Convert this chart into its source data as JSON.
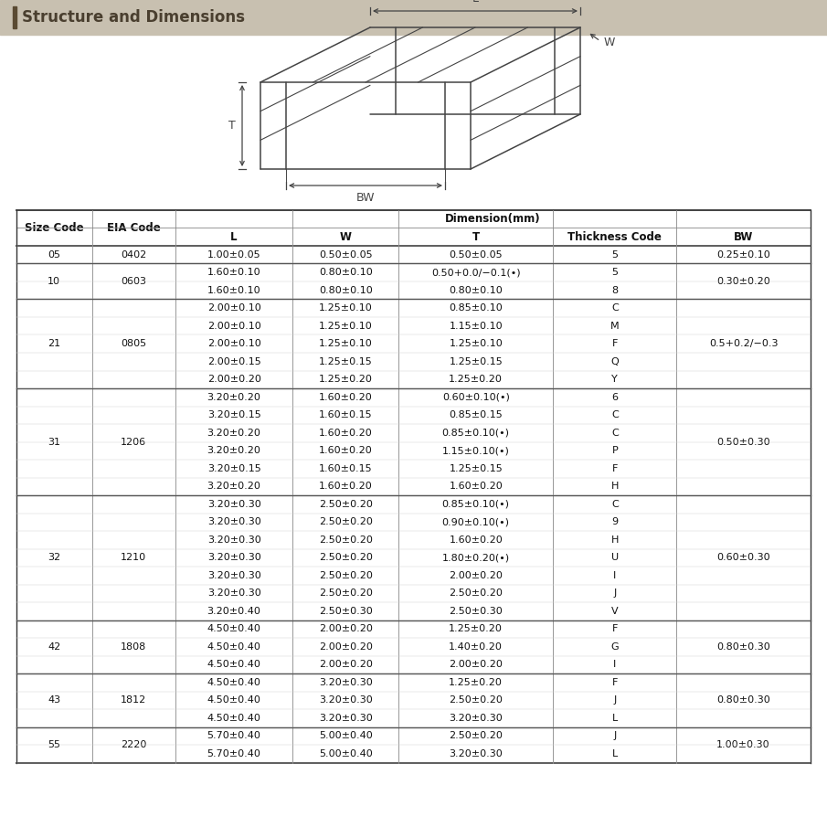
{
  "title": "Structure and Dimensions",
  "title_bar_color": "#c8c0b0",
  "title_text_color": "#4a3f2f",
  "bg_color": "#ffffff",
  "table_header": [
    "Size Code",
    "EIA Code",
    "L",
    "W",
    "T",
    "Thickness Code",
    "BW"
  ],
  "dimension_header": "Dimension(mm)",
  "rows": [
    {
      "size": "05",
      "eia": "0402",
      "L": "1.00±0.05",
      "W": "0.50±0.05",
      "T": "0.50±0.05",
      "thick": "5",
      "BW": "0.25±0.10",
      "size_span": 1,
      "bw_span": 1
    },
    {
      "size": "10",
      "eia": "0603",
      "L": "1.60±0.10",
      "W": "0.80±0.10",
      "T": "0.50+0.0/−0.1(•)",
      "thick": "5",
      "BW": "0.30±0.20",
      "size_span": 2,
      "bw_span": 2
    },
    {
      "size": "",
      "eia": "",
      "L": "1.60±0.10",
      "W": "0.80±0.10",
      "T": "0.80±0.10",
      "thick": "8",
      "BW": "",
      "size_span": 0,
      "bw_span": 0
    },
    {
      "size": "21",
      "eia": "0805",
      "L": "2.00±0.10",
      "W": "1.25±0.10",
      "T": "0.85±0.10",
      "thick": "C",
      "BW": "0.5+0.2/−0.3",
      "size_span": 5,
      "bw_span": 5
    },
    {
      "size": "",
      "eia": "",
      "L": "2.00±0.10",
      "W": "1.25±0.10",
      "T": "1.15±0.10",
      "thick": "M",
      "BW": "",
      "size_span": 0,
      "bw_span": 0
    },
    {
      "size": "",
      "eia": "",
      "L": "2.00±0.10",
      "W": "1.25±0.10",
      "T": "1.25±0.10",
      "thick": "F",
      "BW": "",
      "size_span": 0,
      "bw_span": 0
    },
    {
      "size": "",
      "eia": "",
      "L": "2.00±0.15",
      "W": "1.25±0.15",
      "T": "1.25±0.15",
      "thick": "Q",
      "BW": "",
      "size_span": 0,
      "bw_span": 0
    },
    {
      "size": "",
      "eia": "",
      "L": "2.00±0.20",
      "W": "1.25±0.20",
      "T": "1.25±0.20",
      "thick": "Y",
      "BW": "",
      "size_span": 0,
      "bw_span": 0
    },
    {
      "size": "31",
      "eia": "1206",
      "L": "3.20±0.20",
      "W": "1.60±0.20",
      "T": "0.60±0.10(•)",
      "thick": "6",
      "BW": "0.50±0.30",
      "size_span": 6,
      "bw_span": 6
    },
    {
      "size": "",
      "eia": "",
      "L": "3.20±0.15",
      "W": "1.60±0.15",
      "T": "0.85±0.15",
      "thick": "C",
      "BW": "",
      "size_span": 0,
      "bw_span": 0
    },
    {
      "size": "",
      "eia": "",
      "L": "3.20±0.20",
      "W": "1.60±0.20",
      "T": "0.85±0.10(•)",
      "thick": "C",
      "BW": "",
      "size_span": 0,
      "bw_span": 0
    },
    {
      "size": "",
      "eia": "",
      "L": "3.20±0.20",
      "W": "1.60±0.20",
      "T": "1.15±0.10(•)",
      "thick": "P",
      "BW": "",
      "size_span": 0,
      "bw_span": 0
    },
    {
      "size": "",
      "eia": "",
      "L": "3.20±0.15",
      "W": "1.60±0.15",
      "T": "1.25±0.15",
      "thick": "F",
      "BW": "",
      "size_span": 0,
      "bw_span": 0
    },
    {
      "size": "",
      "eia": "",
      "L": "3.20±0.20",
      "W": "1.60±0.20",
      "T": "1.60±0.20",
      "thick": "H",
      "BW": "",
      "size_span": 0,
      "bw_span": 0
    },
    {
      "size": "32",
      "eia": "1210",
      "L": "3.20±0.30",
      "W": "2.50±0.20",
      "T": "0.85±0.10(•)",
      "thick": "C",
      "BW": "0.60±0.30",
      "size_span": 7,
      "bw_span": 7
    },
    {
      "size": "",
      "eia": "",
      "L": "3.20±0.30",
      "W": "2.50±0.20",
      "T": "0.90±0.10(•)",
      "thick": "9",
      "BW": "",
      "size_span": 0,
      "bw_span": 0
    },
    {
      "size": "",
      "eia": "",
      "L": "3.20±0.30",
      "W": "2.50±0.20",
      "T": "1.60±0.20",
      "thick": "H",
      "BW": "",
      "size_span": 0,
      "bw_span": 0
    },
    {
      "size": "",
      "eia": "",
      "L": "3.20±0.30",
      "W": "2.50±0.20",
      "T": "1.80±0.20(•)",
      "thick": "U",
      "BW": "",
      "size_span": 0,
      "bw_span": 0
    },
    {
      "size": "",
      "eia": "",
      "L": "3.20±0.30",
      "W": "2.50±0.20",
      "T": "2.00±0.20",
      "thick": "I",
      "BW": "",
      "size_span": 0,
      "bw_span": 0
    },
    {
      "size": "",
      "eia": "",
      "L": "3.20±0.30",
      "W": "2.50±0.20",
      "T": "2.50±0.20",
      "thick": "J",
      "BW": "",
      "size_span": 0,
      "bw_span": 0
    },
    {
      "size": "",
      "eia": "",
      "L": "3.20±0.40",
      "W": "2.50±0.30",
      "T": "2.50±0.30",
      "thick": "V",
      "BW": "",
      "size_span": 0,
      "bw_span": 0
    },
    {
      "size": "42",
      "eia": "1808",
      "L": "4.50±0.40",
      "W": "2.00±0.20",
      "T": "1.25±0.20",
      "thick": "F",
      "BW": "0.80±0.30",
      "size_span": 3,
      "bw_span": 3
    },
    {
      "size": "",
      "eia": "",
      "L": "4.50±0.40",
      "W": "2.00±0.20",
      "T": "1.40±0.20",
      "thick": "G",
      "BW": "",
      "size_span": 0,
      "bw_span": 0
    },
    {
      "size": "",
      "eia": "",
      "L": "4.50±0.40",
      "W": "2.00±0.20",
      "T": "2.00±0.20",
      "thick": "I",
      "BW": "",
      "size_span": 0,
      "bw_span": 0
    },
    {
      "size": "43",
      "eia": "1812",
      "L": "4.50±0.40",
      "W": "3.20±0.30",
      "T": "1.25±0.20",
      "thick": "F",
      "BW": "0.80±0.30",
      "size_span": 3,
      "bw_span": 3
    },
    {
      "size": "",
      "eia": "",
      "L": "4.50±0.40",
      "W": "3.20±0.30",
      "T": "2.50±0.20",
      "thick": "J",
      "BW": "",
      "size_span": 0,
      "bw_span": 0
    },
    {
      "size": "",
      "eia": "",
      "L": "4.50±0.40",
      "W": "3.20±0.30",
      "T": "3.20±0.30",
      "thick": "L",
      "BW": "",
      "size_span": 0,
      "bw_span": 0
    },
    {
      "size": "55",
      "eia": "2220",
      "L": "5.70±0.40",
      "W": "5.00±0.40",
      "T": "2.50±0.20",
      "thick": "J",
      "BW": "1.00±0.30",
      "size_span": 2,
      "bw_span": 2
    },
    {
      "size": "",
      "eia": "",
      "L": "5.70±0.40",
      "W": "5.00±0.40",
      "T": "3.20±0.30",
      "thick": "L",
      "BW": "",
      "size_span": 0,
      "bw_span": 0
    }
  ]
}
